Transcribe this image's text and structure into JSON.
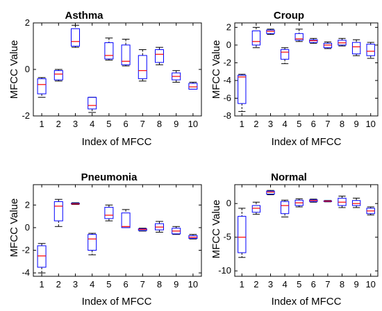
{
  "chart_data": [
    {
      "type": "box",
      "title": "Asthma",
      "xlabel": "Index of MFCC",
      "ylabel": "MFCC Value",
      "categories": [
        "1",
        "2",
        "3",
        "4",
        "5",
        "6",
        "7",
        "8",
        "9",
        "10"
      ],
      "ylim": [
        -2,
        2
      ],
      "yticks": [
        -2,
        0,
        2
      ],
      "boxes": [
        {
          "min": -1.2,
          "q1": -1.05,
          "median": -0.65,
          "q3": -0.4,
          "max": -0.35
        },
        {
          "min": -0.5,
          "q1": -0.45,
          "median": -0.2,
          "q3": -0.05,
          "max": 0.0
        },
        {
          "min": 0.95,
          "q1": 1.0,
          "median": 1.2,
          "q3": 1.75,
          "max": 1.9
        },
        {
          "min": -1.85,
          "q1": -1.7,
          "median": -1.55,
          "q3": -1.2,
          "max": -1.2
        },
        {
          "min": 0.4,
          "q1": 0.45,
          "median": 0.6,
          "q3": 1.15,
          "max": 1.35
        },
        {
          "min": 0.15,
          "q1": 0.2,
          "median": 0.35,
          "q3": 1.05,
          "max": 1.3
        },
        {
          "min": -0.5,
          "q1": -0.4,
          "median": -0.05,
          "q3": 0.6,
          "max": 0.85
        },
        {
          "min": 0.2,
          "q1": 0.3,
          "median": 0.65,
          "q3": 0.85,
          "max": 0.95
        },
        {
          "min": -0.55,
          "q1": -0.45,
          "median": -0.3,
          "q3": -0.15,
          "max": -0.05
        },
        {
          "min": -0.85,
          "q1": -0.85,
          "median": -0.75,
          "q3": -0.6,
          "max": -0.55
        }
      ]
    },
    {
      "type": "box",
      "title": "Croup",
      "xlabel": "Index of MFCC",
      "ylabel": "MFCC Value",
      "categories": [
        "1",
        "2",
        "3",
        "4",
        "5",
        "6",
        "7",
        "8",
        "9",
        "10"
      ],
      "ylim": [
        -8,
        2.5
      ],
      "yticks": [
        -8,
        -6,
        -4,
        -2,
        0,
        2
      ],
      "boxes": [
        {
          "min": -7.5,
          "q1": -6.6,
          "median": -3.6,
          "q3": -3.4,
          "max": -3.3
        },
        {
          "min": -0.3,
          "q1": 0.0,
          "median": 0.4,
          "q3": 1.6,
          "max": 2.0
        },
        {
          "min": 1.2,
          "q1": 1.3,
          "median": 1.55,
          "q3": 1.7,
          "max": 1.8
        },
        {
          "min": -2.1,
          "q1": -1.6,
          "median": -0.8,
          "q3": -0.5,
          "max": -0.3
        },
        {
          "min": 0.4,
          "q1": 0.55,
          "median": 0.7,
          "q3": 1.3,
          "max": 1.8
        },
        {
          "min": 0.2,
          "q1": 0.3,
          "median": 0.5,
          "q3": 0.6,
          "max": 0.75
        },
        {
          "min": -0.4,
          "q1": -0.3,
          "median": 0.0,
          "q3": 0.2,
          "max": 0.35
        },
        {
          "min": -0.1,
          "q1": 0.0,
          "median": 0.25,
          "q3": 0.55,
          "max": 0.75
        },
        {
          "min": -1.2,
          "q1": -1.0,
          "median": -0.2,
          "q3": 0.3,
          "max": 0.6
        },
        {
          "min": -1.5,
          "q1": -1.2,
          "median": -0.7,
          "q3": 0.1,
          "max": 0.3
        }
      ]
    },
    {
      "type": "box",
      "title": "Pneumonia",
      "xlabel": "Index of MFCC",
      "ylabel": "MFCC Value",
      "categories": [
        "1",
        "2",
        "3",
        "4",
        "5",
        "6",
        "7",
        "8",
        "9",
        "10"
      ],
      "ylim": [
        -4.3,
        3.8
      ],
      "yticks": [
        -4,
        -2,
        0,
        2
      ],
      "boxes": [
        {
          "min": -4.0,
          "q1": -3.5,
          "median": -2.5,
          "q3": -1.6,
          "max": -1.4
        },
        {
          "min": 0.1,
          "q1": 0.6,
          "median": 1.9,
          "q3": 2.3,
          "max": 2.5
        },
        {
          "min": 2.05,
          "q1": 2.1,
          "median": 2.1,
          "q3": 2.15,
          "max": 2.2
        },
        {
          "min": -2.4,
          "q1": -2.0,
          "median": -1.0,
          "q3": -0.6,
          "max": -0.5
        },
        {
          "min": 0.6,
          "q1": 0.8,
          "median": 1.1,
          "q3": 1.8,
          "max": 2.0
        },
        {
          "min": 0.0,
          "q1": 0.0,
          "median": 0.1,
          "q3": 1.3,
          "max": 1.6
        },
        {
          "min": -0.3,
          "q1": -0.25,
          "median": -0.15,
          "q3": -0.1,
          "max": -0.05
        },
        {
          "min": -0.4,
          "q1": -0.2,
          "median": 0.05,
          "q3": 0.35,
          "max": 0.55
        },
        {
          "min": -0.6,
          "q1": -0.55,
          "median": -0.3,
          "q3": -0.05,
          "max": 0.1
        },
        {
          "min": -1.0,
          "q1": -0.95,
          "median": -0.85,
          "q3": -0.7,
          "max": -0.6
        }
      ]
    },
    {
      "type": "box",
      "title": "Normal",
      "xlabel": "Index of MFCC",
      "ylabel": "MFCC Value",
      "categories": [
        "1",
        "2",
        "3",
        "4",
        "5",
        "6",
        "7",
        "8",
        "9",
        "10"
      ],
      "ylim": [
        -10.8,
        2.8
      ],
      "yticks": [
        -10,
        -5,
        0
      ],
      "boxes": [
        {
          "min": -8.0,
          "q1": -7.3,
          "median": -5.0,
          "q3": -1.9,
          "max": -0.7
        },
        {
          "min": -1.6,
          "q1": -1.3,
          "median": -0.7,
          "q3": -0.3,
          "max": 0.2
        },
        {
          "min": 1.3,
          "q1": 1.4,
          "median": 1.7,
          "q3": 1.85,
          "max": 1.95
        },
        {
          "min": -2.0,
          "q1": -1.5,
          "median": -0.3,
          "q3": 0.3,
          "max": 0.5
        },
        {
          "min": -0.5,
          "q1": -0.3,
          "median": 0.1,
          "q3": 0.5,
          "max": 0.7
        },
        {
          "min": 0.2,
          "q1": 0.3,
          "median": 0.45,
          "q3": 0.55,
          "max": 0.65
        },
        {
          "min": 0.25,
          "q1": 0.3,
          "median": 0.35,
          "q3": 0.4,
          "max": 0.45
        },
        {
          "min": -0.6,
          "q1": -0.3,
          "median": 0.2,
          "q3": 0.8,
          "max": 1.1
        },
        {
          "min": -0.6,
          "q1": -0.3,
          "median": 0.0,
          "q3": 0.45,
          "max": 0.8
        },
        {
          "min": -1.7,
          "q1": -1.5,
          "median": -1.1,
          "q3": -0.7,
          "max": -0.5
        }
      ]
    }
  ],
  "colors": {
    "box": "#0000ff",
    "median": "#ff0000",
    "whisker": "#000000",
    "axis": "#000000"
  }
}
